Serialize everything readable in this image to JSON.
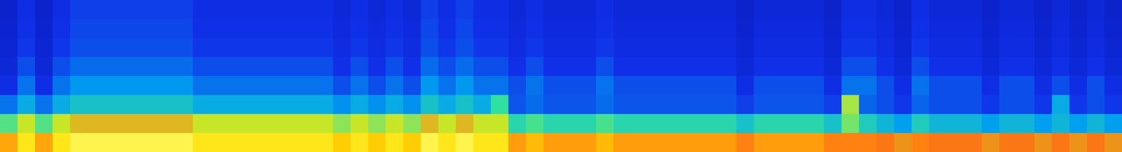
{
  "chart_data": {
    "type": "heatmap",
    "tick_labels": false,
    "color_range": [
      0,
      100
    ],
    "cells": [
      [
        18,
        24,
        18,
        24,
        27,
        27,
        27,
        27,
        27,
        27,
        27,
        24,
        24,
        24,
        24,
        24,
        24,
        24,
        24,
        21,
        24,
        21,
        24,
        21,
        27,
        24,
        27,
        24,
        24,
        21,
        24,
        21,
        21,
        21,
        24,
        21,
        21,
        21,
        21,
        21,
        21,
        21,
        18,
        21,
        21,
        21,
        21,
        18,
        24,
        24,
        21,
        18,
        24,
        21,
        21,
        21,
        18,
        21,
        21,
        18,
        21,
        18,
        21,
        18
      ],
      [
        19,
        25,
        19,
        25,
        28,
        28,
        28,
        28,
        28,
        28,
        28,
        25,
        25,
        25,
        25,
        25,
        25,
        25,
        25,
        22,
        25,
        22,
        25,
        22,
        28,
        25,
        28,
        25,
        25,
        22,
        25,
        22,
        22,
        22,
        25,
        22,
        22,
        22,
        22,
        22,
        22,
        22,
        19,
        22,
        22,
        22,
        22,
        19,
        25,
        25,
        22,
        19,
        25,
        22,
        22,
        22,
        19,
        22,
        22,
        19,
        22,
        19,
        22,
        19
      ],
      [
        20,
        26,
        20,
        26,
        29,
        29,
        29,
        29,
        29,
        29,
        29,
        26,
        26,
        26,
        26,
        26,
        26,
        26,
        26,
        23,
        26,
        23,
        26,
        23,
        29,
        26,
        29,
        26,
        26,
        23,
        26,
        23,
        23,
        23,
        26,
        23,
        23,
        23,
        23,
        23,
        23,
        23,
        20,
        23,
        23,
        23,
        23,
        20,
        26,
        26,
        23,
        20,
        26,
        23,
        23,
        23,
        20,
        23,
        23,
        20,
        23,
        20,
        23,
        20
      ],
      [
        21,
        29,
        21,
        29,
        33,
        33,
        33,
        33,
        33,
        33,
        33,
        29,
        29,
        29,
        29,
        29,
        29,
        29,
        29,
        25,
        29,
        25,
        29,
        25,
        33,
        29,
        33,
        29,
        29,
        25,
        29,
        25,
        25,
        25,
        29,
        25,
        25,
        25,
        25,
        25,
        25,
        25,
        21,
        25,
        25,
        25,
        25,
        21,
        29,
        29,
        25,
        21,
        29,
        25,
        25,
        25,
        21,
        25,
        25,
        21,
        25,
        21,
        25,
        21
      ],
      [
        24,
        34,
        24,
        34,
        39,
        39,
        39,
        39,
        39,
        39,
        39,
        34,
        34,
        34,
        34,
        34,
        34,
        34,
        34,
        29,
        34,
        29,
        34,
        29,
        39,
        34,
        39,
        34,
        34,
        29,
        34,
        29,
        29,
        29,
        34,
        29,
        29,
        29,
        29,
        29,
        29,
        29,
        24,
        29,
        29,
        29,
        29,
        24,
        34,
        34,
        29,
        24,
        34,
        29,
        29,
        29,
        24,
        29,
        29,
        24,
        29,
        24,
        29,
        24
      ],
      [
        34,
        42,
        34,
        42,
        46,
        46,
        46,
        46,
        46,
        46,
        46,
        42,
        42,
        42,
        42,
        42,
        42,
        42,
        42,
        38,
        42,
        38,
        42,
        38,
        46,
        42,
        46,
        42,
        52,
        30,
        33,
        30,
        30,
        30,
        33,
        30,
        30,
        30,
        30,
        30,
        30,
        30,
        27,
        30,
        30,
        30,
        30,
        27,
        62,
        32,
        29,
        26,
        32,
        29,
        29,
        29,
        26,
        29,
        29,
        26,
        42,
        26,
        29,
        26
      ],
      [
        55,
        65,
        55,
        65,
        70,
        70,
        70,
        70,
        70,
        70,
        70,
        65,
        65,
        65,
        65,
        65,
        65,
        65,
        65,
        60,
        65,
        60,
        65,
        60,
        70,
        65,
        70,
        65,
        65,
        50,
        54,
        50,
        50,
        50,
        54,
        50,
        50,
        50,
        50,
        50,
        50,
        50,
        46,
        50,
        50,
        50,
        50,
        46,
        58,
        48,
        44,
        40,
        48,
        44,
        44,
        44,
        40,
        44,
        44,
        40,
        44,
        40,
        44,
        40
      ],
      [
        84,
        92,
        84,
        92,
        96,
        96,
        96,
        96,
        96,
        96,
        96,
        92,
        92,
        92,
        92,
        92,
        92,
        92,
        92,
        88,
        92,
        88,
        92,
        88,
        96,
        92,
        96,
        92,
        92,
        83,
        86,
        83,
        83,
        83,
        86,
        83,
        83,
        83,
        83,
        83,
        83,
        83,
        80,
        83,
        83,
        83,
        83,
        80,
        80,
        80,
        77,
        74,
        80,
        77,
        77,
        77,
        74,
        77,
        77,
        74,
        77,
        74,
        77,
        74
      ]
    ]
  }
}
